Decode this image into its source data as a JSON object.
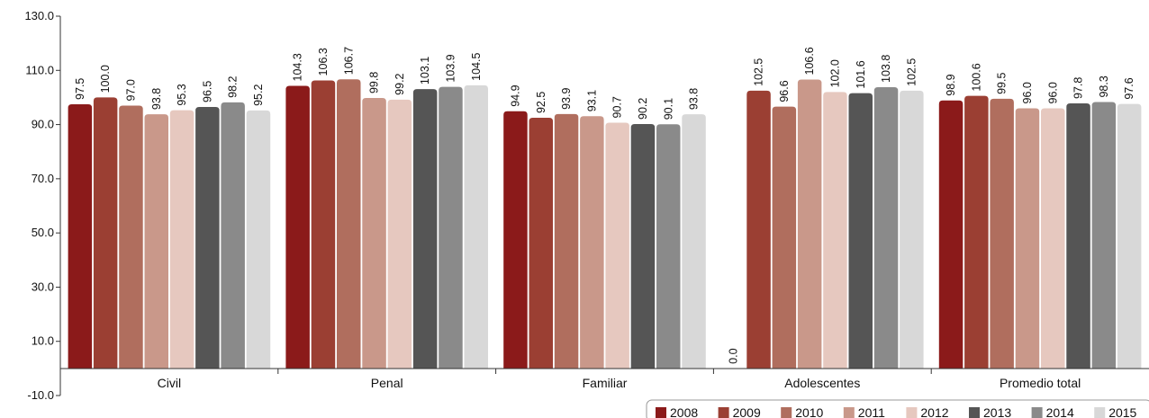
{
  "chart_data": {
    "type": "bar",
    "categories": [
      "Civil",
      "Penal",
      "Familiar",
      "Adolescentes",
      "Promedio total"
    ],
    "ylim": [
      -10,
      130
    ],
    "yticks": [
      "-10.0",
      "10.0",
      "30.0",
      "50.0",
      "70.0",
      "90.0",
      "110.0",
      "130.0"
    ],
    "grid": false,
    "legend": "bottom-right",
    "series": [
      {
        "name": "2008",
        "color": "#8b1a1a",
        "values": [
          97.5,
          104.3,
          94.9,
          0.0,
          98.9
        ],
        "labels": [
          "97.5",
          "104.3",
          "94.9",
          "0.0",
          "98.9"
        ]
      },
      {
        "name": "2009",
        "color": "#9b3f33",
        "values": [
          100.0,
          106.3,
          92.5,
          102.5,
          100.6
        ],
        "labels": [
          "100.0",
          "106.3",
          "92.5",
          "102.5",
          "100.6"
        ]
      },
      {
        "name": "2010",
        "color": "#b06e5e",
        "values": [
          97.0,
          106.7,
          93.9,
          96.6,
          99.5
        ],
        "labels": [
          "97.0",
          "106.7",
          "93.9",
          "96.6",
          "99.5"
        ]
      },
      {
        "name": "2011",
        "color": "#c9988a",
        "values": [
          93.8,
          99.8,
          93.1,
          106.6,
          96.0
        ],
        "labels": [
          "93.8",
          "99.8",
          "93.1",
          "106.6",
          "96.0"
        ]
      },
      {
        "name": "2012",
        "color": "#e6c8bf",
        "values": [
          95.3,
          99.2,
          90.7,
          102.0,
          96.0
        ],
        "labels": [
          "95.3",
          "99.2",
          "90.7",
          "102.0",
          "96.0"
        ]
      },
      {
        "name": "2013",
        "color": "#555555",
        "values": [
          96.5,
          103.1,
          90.2,
          101.6,
          97.8
        ],
        "labels": [
          "96.5",
          "103.1",
          "90.2",
          "101.6",
          "97.8"
        ]
      },
      {
        "name": "2014",
        "color": "#8a8a8a",
        "values": [
          98.2,
          103.9,
          90.1,
          103.8,
          98.3
        ],
        "labels": [
          "98.2",
          "103.9",
          "90.1",
          "103.8",
          "98.3"
        ]
      },
      {
        "name": "2015",
        "color": "#d8d8d8",
        "values": [
          95.2,
          104.5,
          93.8,
          102.5,
          97.6
        ],
        "labels": [
          "95.2",
          "104.5",
          "93.8",
          "102.5",
          "97.6"
        ]
      }
    ]
  }
}
